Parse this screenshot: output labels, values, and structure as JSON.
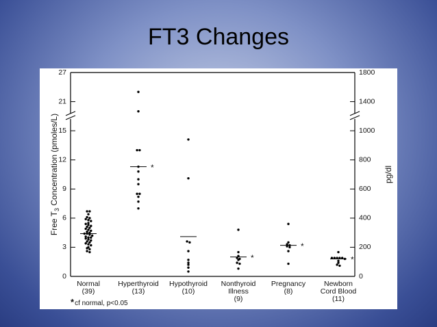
{
  "chart_data": {
    "type": "strip",
    "title": "FT3 Changes",
    "ylabel_parts": [
      "Free T",
      "3",
      " Concentration (pmoles/L)"
    ],
    "y2label": "pg/dl",
    "categories": [
      [
        "Normal",
        "(39)"
      ],
      [
        "Hyperthyroid",
        "(13)"
      ],
      [
        "Hypothyroid",
        "(10)"
      ],
      [
        "Nonthyroid",
        "Illness",
        "(9)"
      ],
      [
        "Pregnancy",
        "(8)"
      ],
      [
        "Newborn",
        "Cord Blood",
        "(11)"
      ]
    ],
    "values": [
      [
        6.7,
        6.7,
        6.4,
        6.1,
        6.0,
        5.9,
        5.8,
        5.7,
        5.5,
        5.4,
        5.3,
        5.2,
        5.1,
        5.0,
        4.9,
        4.8,
        4.7,
        4.6,
        4.5,
        4.4,
        4.4,
        4.3,
        4.2,
        4.1,
        4.0,
        4.0,
        3.9,
        3.8,
        3.7,
        3.6,
        3.5,
        3.4,
        3.3,
        3.2,
        3.0,
        2.9,
        2.8,
        2.6,
        2.5
      ],
      [
        23,
        19,
        13,
        13,
        11.3,
        10.8,
        10.0,
        9.5,
        8.5,
        8.5,
        8.2,
        7.7,
        7.0
      ],
      [
        14.1,
        10.1,
        3.6,
        3.5,
        2.6,
        1.7,
        1.4,
        1.2,
        0.9,
        0.5
      ],
      [
        4.8,
        2.5,
        2.1,
        1.9,
        1.8,
        1.7,
        1.4,
        1.3,
        0.8
      ],
      [
        5.4,
        3.5,
        3.3,
        3.2,
        3.1,
        3.0,
        2.6,
        1.3
      ],
      [
        2.5,
        1.9,
        1.9,
        1.9,
        1.9,
        1.9,
        1.8,
        1.6,
        1.4,
        1.2,
        1.1
      ]
    ],
    "centers": [
      4.4,
      11.3,
      4.1,
      2.0,
      3.2,
      1.8
    ],
    "significant": [
      false,
      true,
      false,
      true,
      true,
      true
    ],
    "marker": "*",
    "footnote": "cf normal, p<0.05",
    "color": "#000000",
    "ylim": [
      0,
      27
    ],
    "yticks": [
      0,
      3,
      6,
      9,
      12,
      15,
      21,
      27
    ],
    "y2lim": [
      0,
      1800
    ],
    "y2ticks": [
      0,
      200,
      400,
      600,
      800,
      1000,
      1400,
      1800
    ]
  }
}
